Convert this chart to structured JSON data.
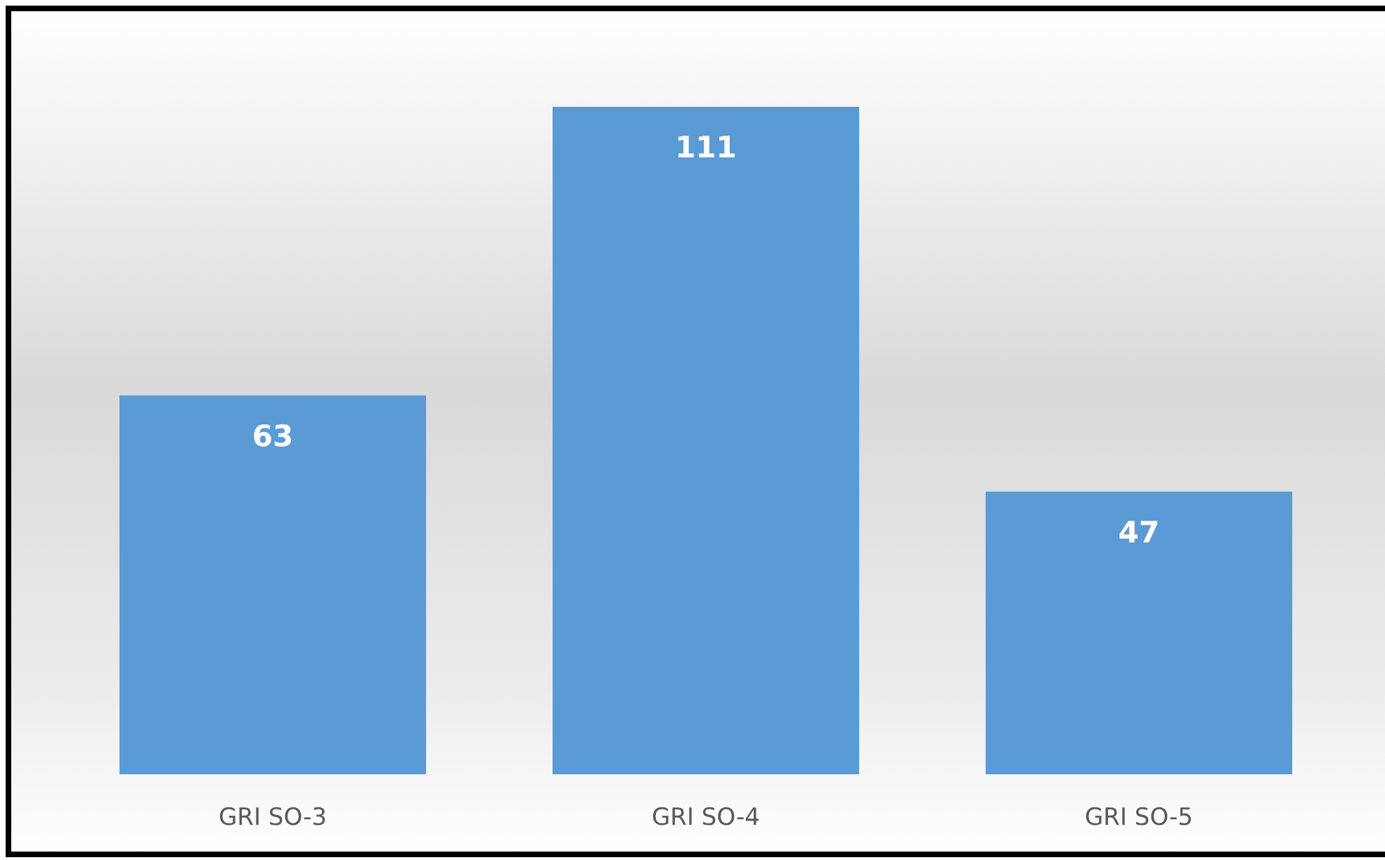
{
  "chart_data": {
    "type": "bar",
    "categories": [
      "GRI SO-3",
      "GRI SO-4",
      "GRI SO-5"
    ],
    "values": [
      63,
      111,
      47
    ],
    "color": "#5b9bd5",
    "data_labels": true
  }
}
